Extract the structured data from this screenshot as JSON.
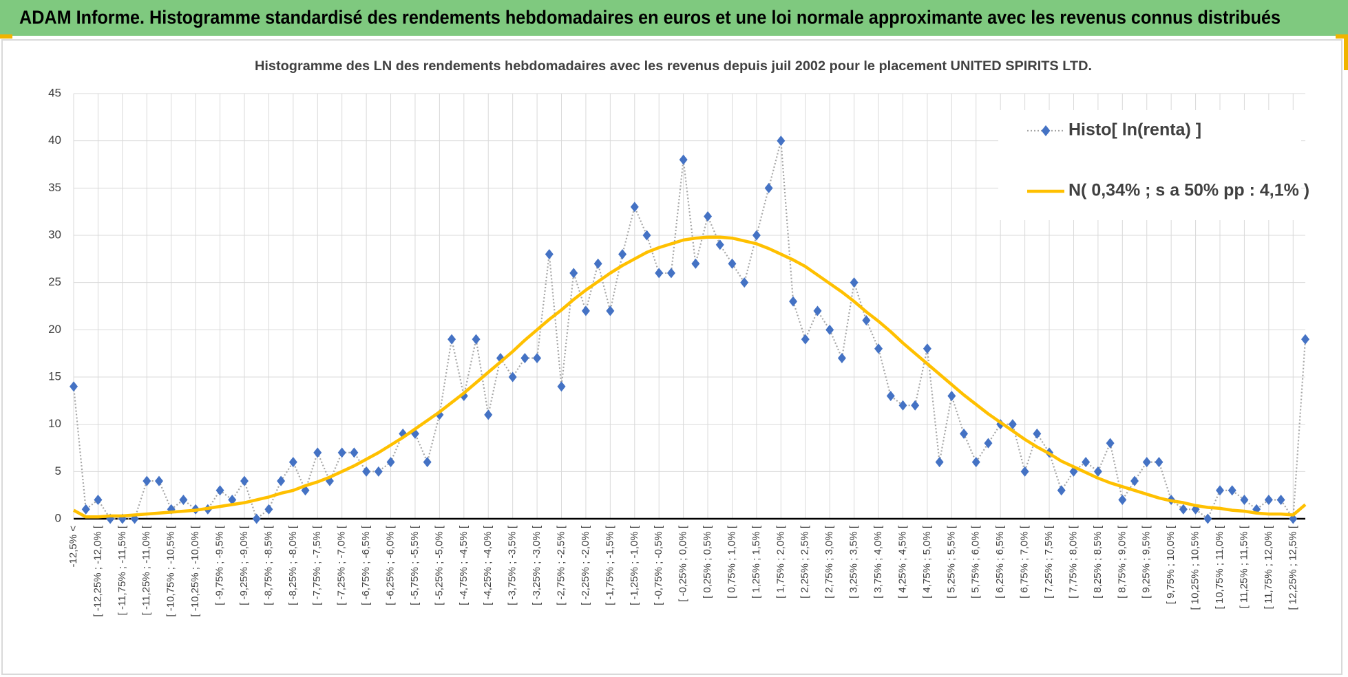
{
  "header": {
    "title": "ADAM Informe. Histogramme standardisé des rendements hebdomadaires en euros et une loi normale approximante avec les revenus connus distribués"
  },
  "chart_data": {
    "type": "line",
    "title": "Histogramme des LN des rendements hebdomadaires avec les revenus depuis juil 2002 pour le placement UNITED SPIRITS LTD.",
    "categories": [
      "-12,5% <",
      null,
      "[ -12,25% ; -12,0% [",
      null,
      "[ -11,75% ; -11,5% [",
      null,
      "[ -11,25% ; -11,0% [",
      null,
      "[ -10,75% ; -10,5% [",
      null,
      "[ -10,25% ; -10,0% [",
      null,
      "[ -9,75% ; -9,5% [",
      null,
      "[ -9,25% ; -9,0% [",
      null,
      "[ -8,75% ; -8,5% [",
      null,
      "[ -8,25% ; -8,0% [",
      null,
      "[ -7,75% ; -7,5% [",
      null,
      "[ -7,25% ; -7,0% [",
      null,
      "[ -6,75% ; -6,5% [",
      null,
      "[ -6,25% ; -6,0% [",
      null,
      "[ -5,75% ; -5,5% [",
      null,
      "[ -5,25% ; -5,0% [",
      null,
      "[ -4,75% ; -4,5% [",
      null,
      "[ -4,25% ; -4,0% [",
      null,
      "[ -3,75% ; -3,5% [",
      null,
      "[ -3,25% ; -3,0% [",
      null,
      "[ -2,75% ; -2,5% [",
      null,
      "[ -2,25% ; -2,0% [",
      null,
      "[ -1,75% ; -1,5% [",
      null,
      "[ -1,25% ; -1,0% [",
      null,
      "[ -0,75% ; -0,5% [",
      null,
      "[ -0,25% ; 0,0% [",
      null,
      "[ 0,25% ; 0,5% [",
      null,
      "[ 0,75% ; 1,0% [",
      null,
      "[ 1,25% ; 1,5% [",
      null,
      "[ 1,75% ; 2,0% [",
      null,
      "[ 2,25% ; 2,5% [",
      null,
      "[ 2,75% ; 3,0% [",
      null,
      "[ 3,25% ; 3,5% [",
      null,
      "[ 3,75% ; 4,0% [",
      null,
      "[ 4,25% ; 4,5% [",
      null,
      "[ 4,75% ; 5,0% [",
      null,
      "[ 5,25% ; 5,5% [",
      null,
      "[ 5,75% ; 6,0% [",
      null,
      "[ 6,25% ; 6,5% [",
      null,
      "[ 6,75% ; 7,0% [",
      null,
      "[ 7,25% ; 7,5% [",
      null,
      "[ 7,75% ; 8,0% [",
      null,
      "[ 8,25% ; 8,5% [",
      null,
      "[ 8,75% ; 9,0% [",
      null,
      "[ 9,25% ; 9,5% [",
      null,
      "[ 9,75% ; 10,0% [",
      null,
      "[ 10,25% ; 10,5% [",
      null,
      "[ 10,75% ; 11,0% [",
      null,
      "[ 11,25% ; 11,5% [",
      null,
      "[ 11,75% ; 12,0% [",
      null,
      "[ 12,25% ; 12,5% [",
      null
    ],
    "series": [
      {
        "name": "Histo[ ln(renta) ]",
        "color": "#4472c4",
        "line_color": "#a6a6a6",
        "line_style": "dotted",
        "marker": "diamond",
        "values": [
          14,
          1,
          2,
          0,
          0,
          0,
          4,
          4,
          1,
          2,
          1,
          1,
          3,
          2,
          4,
          0,
          1,
          4,
          6,
          3,
          7,
          4,
          7,
          7,
          5,
          5,
          6,
          9,
          9,
          6,
          11,
          19,
          13,
          19,
          11,
          17,
          15,
          17,
          17,
          28,
          14,
          26,
          22,
          27,
          22,
          28,
          33,
          30,
          26,
          26,
          38,
          27,
          32,
          29,
          27,
          25,
          30,
          35,
          40,
          23,
          19,
          22,
          20,
          17,
          25,
          21,
          18,
          13,
          12,
          12,
          18,
          6,
          13,
          9,
          6,
          8,
          10,
          10,
          5,
          9,
          7,
          3,
          5,
          6,
          5,
          8,
          2,
          4,
          6,
          6,
          2,
          1,
          1,
          0,
          3,
          3,
          2,
          1,
          2,
          2,
          0,
          19
        ]
      },
      {
        "name": "N( 0,34% ; s a 50% pp : 4,1% )",
        "color": "#ffc000",
        "line_style": "solid",
        "values": [
          0.9,
          0.2,
          0.2,
          0.3,
          0.3,
          0.4,
          0.5,
          0.6,
          0.7,
          0.8,
          0.9,
          1.1,
          1.3,
          1.5,
          1.7,
          2.0,
          2.3,
          2.7,
          3.0,
          3.5,
          3.9,
          4.4,
          5.0,
          5.6,
          6.3,
          7.0,
          7.8,
          8.6,
          9.5,
          10.4,
          11.3,
          12.3,
          13.3,
          14.4,
          15.5,
          16.6,
          17.7,
          18.9,
          20.0,
          21.1,
          22.1,
          23.2,
          24.2,
          25.1,
          26.0,
          26.8,
          27.5,
          28.2,
          28.7,
          29.1,
          29.5,
          29.7,
          29.8,
          29.8,
          29.7,
          29.4,
          29.1,
          28.6,
          28.0,
          27.4,
          26.7,
          25.8,
          24.9,
          24.0,
          23.0,
          21.9,
          20.9,
          19.8,
          18.6,
          17.5,
          16.4,
          15.3,
          14.2,
          13.1,
          12.1,
          11.1,
          10.2,
          9.3,
          8.4,
          7.6,
          6.9,
          6.1,
          5.5,
          4.9,
          4.3,
          3.8,
          3.4,
          3.0,
          2.6,
          2.2,
          1.9,
          1.7,
          1.4,
          1.2,
          1.1,
          0.9,
          0.8,
          0.6,
          0.5,
          0.5,
          0.4,
          1.5
        ]
      }
    ],
    "ylim": [
      0,
      45
    ],
    "yticks": [
      0,
      5,
      10,
      15,
      20,
      25,
      30,
      35,
      40,
      45
    ],
    "grid": true,
    "legend": "upper right"
  }
}
